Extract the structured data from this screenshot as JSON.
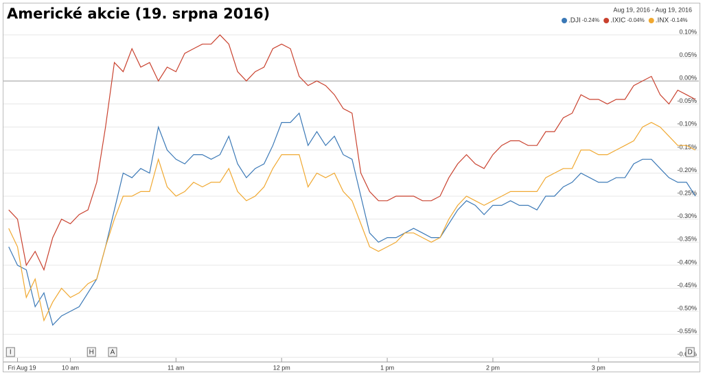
{
  "chart_data": {
    "type": "line",
    "title": "Americké akcie (19. srpna 2016)",
    "date_range": "Aug 19, 2016  -  Aug 19, 2016",
    "x": [
      565,
      570,
      575,
      580,
      585,
      590,
      595,
      600,
      605,
      610,
      615,
      620,
      625,
      630,
      635,
      640,
      645,
      650,
      655,
      660,
      665,
      670,
      675,
      680,
      685,
      690,
      695,
      700,
      705,
      710,
      715,
      720,
      725,
      730,
      735,
      740,
      745,
      750,
      755,
      760,
      765,
      770,
      775,
      780,
      785,
      790,
      795,
      800,
      805,
      810,
      815,
      820,
      825,
      830,
      835,
      840,
      845,
      850,
      855,
      860,
      865,
      870,
      875,
      880,
      885,
      890,
      895,
      900,
      905,
      910,
      915,
      920,
      925,
      930,
      935,
      940,
      945,
      950,
      955
    ],
    "xlim": [
      562,
      957
    ],
    "xticks": [
      {
        "value": 570,
        "label": "Fri Aug 19"
      },
      {
        "value": 600,
        "label": "10 am"
      },
      {
        "value": 660,
        "label": "11 am"
      },
      {
        "value": 720,
        "label": "12 pm"
      },
      {
        "value": 780,
        "label": "1 pm"
      },
      {
        "value": 840,
        "label": "2 pm"
      },
      {
        "value": 900,
        "label": "3 pm"
      }
    ],
    "ylim": [
      -0.61,
      0.14
    ],
    "yticks": [
      {
        "value": 0.1,
        "label": "0.10%"
      },
      {
        "value": 0.05,
        "label": "0.05%"
      },
      {
        "value": 0,
        "label": "0.00%"
      },
      {
        "value": -0.05,
        "label": "-0.05%"
      },
      {
        "value": -0.1,
        "label": "-0.10%"
      },
      {
        "value": -0.15,
        "label": "-0.15%"
      },
      {
        "value": -0.2,
        "label": "-0.20%"
      },
      {
        "value": -0.25,
        "label": "-0.25%"
      },
      {
        "value": -0.3,
        "label": "-0.30%"
      },
      {
        "value": -0.35,
        "label": "-0.35%"
      },
      {
        "value": -0.4,
        "label": "-0.40%"
      },
      {
        "value": -0.45,
        "label": "-0.45%"
      },
      {
        "value": -0.5,
        "label": "-0.50%"
      },
      {
        "value": -0.55,
        "label": "-0.55%"
      },
      {
        "value": -0.6,
        "label": "-0.60%"
      }
    ],
    "grid": true,
    "legend": "top-right",
    "series": [
      {
        "name": ".DJI",
        "change": "-0.24%",
        "color": "#3a78b6",
        "values": [
          -0.36,
          -0.4,
          -0.41,
          -0.49,
          -0.46,
          -0.53,
          -0.51,
          -0.5,
          -0.49,
          -0.46,
          -0.43,
          -0.36,
          -0.28,
          -0.2,
          -0.21,
          -0.19,
          -0.2,
          -0.1,
          -0.15,
          -0.17,
          -0.18,
          -0.16,
          -0.16,
          -0.17,
          -0.16,
          -0.12,
          -0.18,
          -0.21,
          -0.19,
          -0.18,
          -0.14,
          -0.09,
          -0.09,
          -0.07,
          -0.14,
          -0.11,
          -0.14,
          -0.12,
          -0.16,
          -0.17,
          -0.25,
          -0.33,
          -0.35,
          -0.34,
          -0.34,
          -0.33,
          -0.32,
          -0.33,
          -0.34,
          -0.34,
          -0.31,
          -0.28,
          -0.26,
          -0.27,
          -0.29,
          -0.27,
          -0.27,
          -0.26,
          -0.27,
          -0.27,
          -0.28,
          -0.25,
          -0.25,
          -0.23,
          -0.22,
          -0.2,
          -0.21,
          -0.22,
          -0.22,
          -0.21,
          -0.21,
          -0.18,
          -0.17,
          -0.17,
          -0.19,
          -0.21,
          -0.22,
          -0.22,
          -0.25
        ]
      },
      {
        "name": ".IXIC",
        "change": "-0.04%",
        "color": "#c9412e",
        "values": [
          -0.28,
          -0.3,
          -0.4,
          -0.37,
          -0.41,
          -0.34,
          -0.3,
          -0.31,
          -0.29,
          -0.28,
          -0.22,
          -0.1,
          0.04,
          0.02,
          0.07,
          0.03,
          0.04,
          0.0,
          0.03,
          0.02,
          0.06,
          0.07,
          0.08,
          0.08,
          0.1,
          0.08,
          0.02,
          0.0,
          0.02,
          0.03,
          0.07,
          0.08,
          0.07,
          0.01,
          -0.01,
          0.0,
          -0.01,
          -0.03,
          -0.06,
          -0.07,
          -0.2,
          -0.24,
          -0.26,
          -0.26,
          -0.25,
          -0.25,
          -0.25,
          -0.26,
          -0.26,
          -0.25,
          -0.21,
          -0.18,
          -0.16,
          -0.18,
          -0.19,
          -0.16,
          -0.14,
          -0.13,
          -0.13,
          -0.14,
          -0.14,
          -0.11,
          -0.11,
          -0.08,
          -0.07,
          -0.03,
          -0.04,
          -0.04,
          -0.05,
          -0.04,
          -0.04,
          -0.01,
          0.0,
          0.01,
          -0.03,
          -0.05,
          -0.02,
          -0.03,
          -0.04
        ]
      },
      {
        "name": ".INX",
        "change": "-0.14%",
        "color": "#f0a830",
        "values": [
          -0.32,
          -0.36,
          -0.47,
          -0.43,
          -0.52,
          -0.48,
          -0.45,
          -0.47,
          -0.46,
          -0.44,
          -0.43,
          -0.36,
          -0.3,
          -0.25,
          -0.25,
          -0.24,
          -0.24,
          -0.17,
          -0.23,
          -0.25,
          -0.24,
          -0.22,
          -0.23,
          -0.22,
          -0.22,
          -0.19,
          -0.24,
          -0.26,
          -0.25,
          -0.23,
          -0.19,
          -0.16,
          -0.16,
          -0.16,
          -0.23,
          -0.2,
          -0.21,
          -0.2,
          -0.24,
          -0.26,
          -0.31,
          -0.36,
          -0.37,
          -0.36,
          -0.35,
          -0.33,
          -0.33,
          -0.34,
          -0.35,
          -0.34,
          -0.3,
          -0.27,
          -0.25,
          -0.26,
          -0.27,
          -0.26,
          -0.25,
          -0.24,
          -0.24,
          -0.24,
          -0.24,
          -0.21,
          -0.2,
          -0.19,
          -0.19,
          -0.15,
          -0.15,
          -0.16,
          -0.16,
          -0.15,
          -0.14,
          -0.13,
          -0.1,
          -0.09,
          -0.1,
          -0.12,
          -0.14,
          -0.14,
          -0.15
        ]
      }
    ],
    "flags": [
      {
        "label": "I",
        "x": 566
      },
      {
        "label": "H",
        "x": 612
      },
      {
        "label": "A",
        "x": 624
      },
      {
        "label": "D",
        "x": 952
      }
    ]
  }
}
